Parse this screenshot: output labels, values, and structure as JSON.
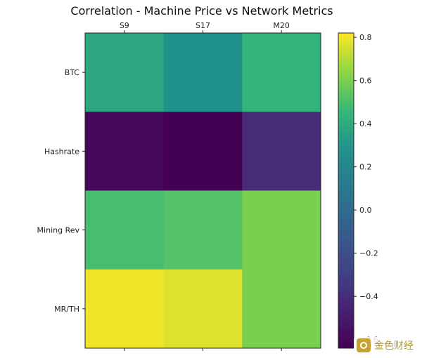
{
  "chart_data": {
    "type": "heatmap",
    "title": "Correlation - Machine Price vs Network Metrics",
    "columns": [
      "S9",
      "S17",
      "M20"
    ],
    "rows": [
      "BTC",
      "Hashrate",
      "Mining Rev",
      "MR/TH"
    ],
    "values": [
      [
        0.38,
        0.28,
        0.44
      ],
      [
        -0.6,
        -0.64,
        -0.42
      ],
      [
        0.49,
        0.52,
        0.6
      ],
      [
        0.8,
        0.77,
        0.6
      ]
    ],
    "colormap": "viridis",
    "colorbar": {
      "min": -0.64,
      "max": 0.82,
      "ticks": [
        0.8,
        0.6,
        0.4,
        0.2,
        0.0,
        -0.2,
        -0.4,
        -0.6
      ],
      "tick_labels": [
        "0.8",
        "0.6",
        "0.4",
        "0.2",
        "0.0",
        "−0.2",
        "−0.4",
        "−0.6"
      ]
    },
    "x_axis_position": "top",
    "grid": false
  },
  "watermark": {
    "text": "金色财经",
    "icon": "jinse-logo-icon"
  }
}
